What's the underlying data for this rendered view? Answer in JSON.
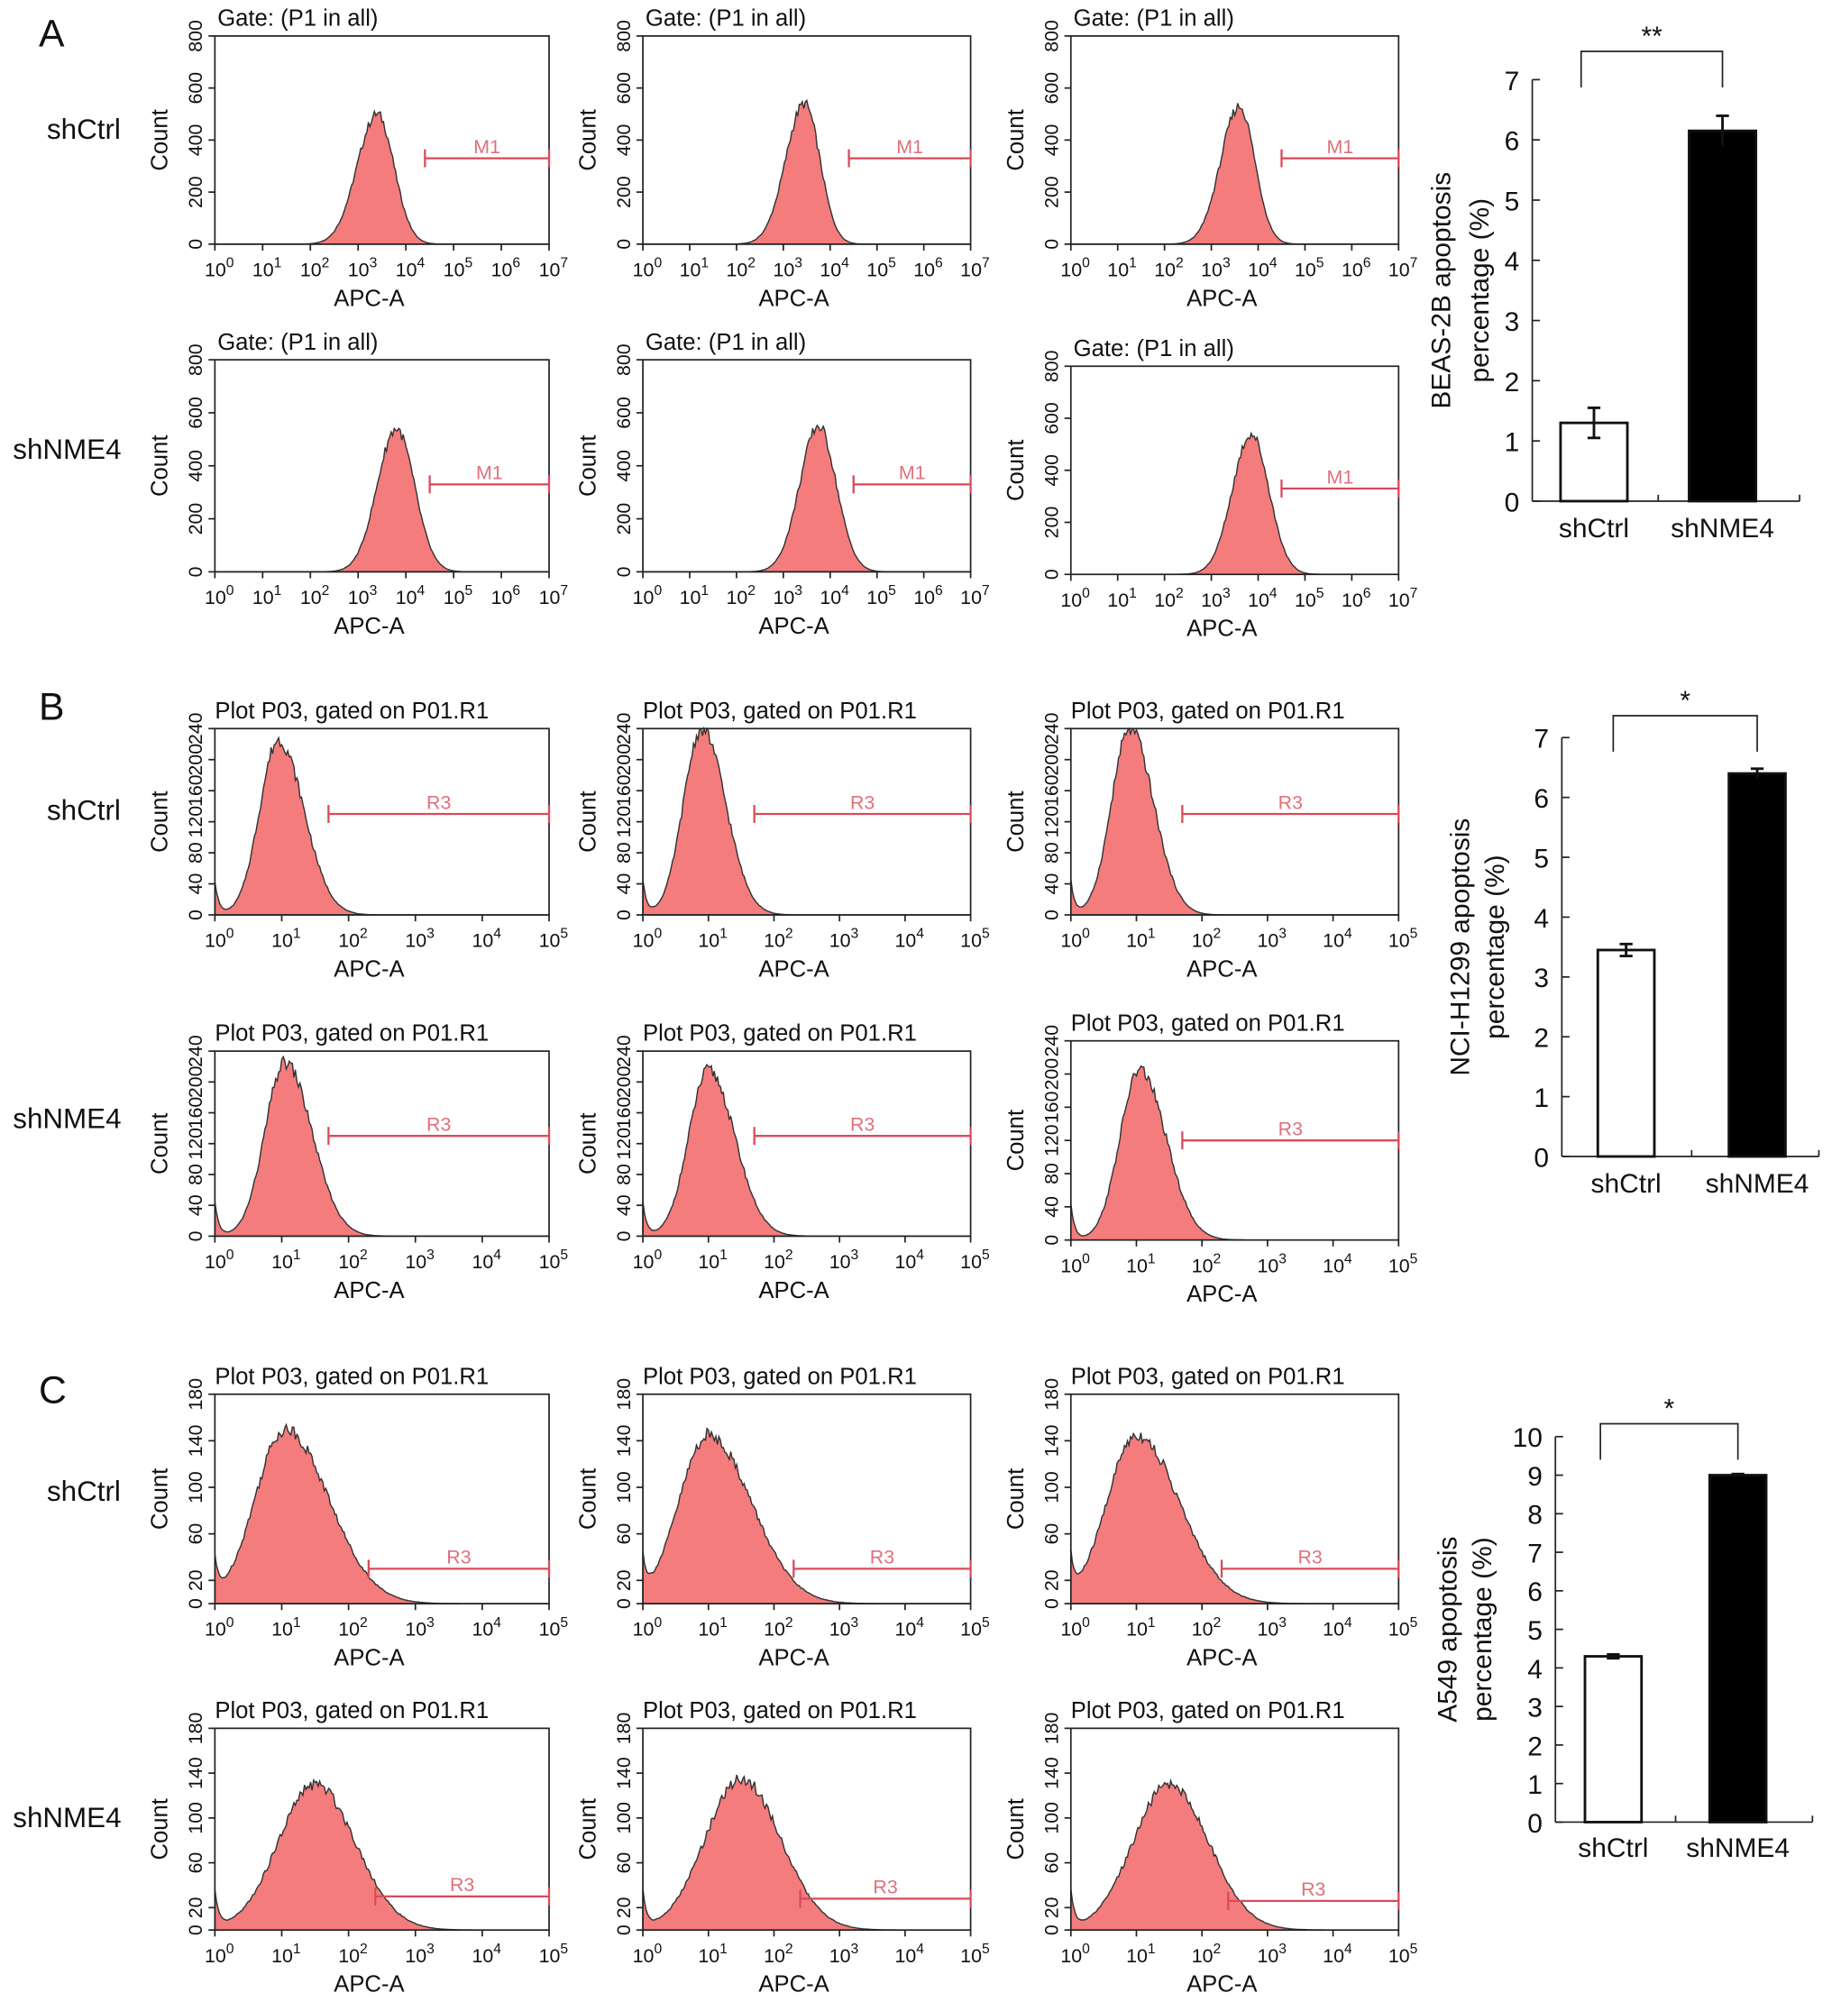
{
  "colors": {
    "histogram_fill": "#f47c7c",
    "gate": "#d94a5a",
    "bar_shCtrl": "#ffffff",
    "bar_shNME4": "#000000"
  },
  "panels": [
    {
      "letter": "A",
      "row_labels": [
        "shCtrl",
        "shNME4"
      ],
      "titles": [
        [
          "Gate: (P1 in all)",
          "Gate: (P1 in all)",
          "Gate: (P1 in all)"
        ],
        [
          "Gate: (P1 in all)",
          "Gate: (P1 in all)",
          "Gate: (P1 in all)"
        ]
      ],
      "xlabel": "APC-A",
      "ylabel": "Count",
      "x_log_range": [
        0,
        7
      ],
      "x_ticks": [
        "0",
        "1",
        "2",
        "3",
        "4",
        "5",
        "6",
        "7"
      ],
      "y_range": [
        0,
        800
      ],
      "y_ticks": [
        0,
        200,
        400,
        600,
        800
      ],
      "gate": {
        "label": "M1"
      },
      "histograms": [
        [
          {
            "peak_log10": 3.4,
            "peak_count": 500,
            "spread_left": 0.42,
            "spread_right": 0.35,
            "gate_from_log10": 4.4,
            "gate_level": 330
          },
          {
            "peak_log10": 3.45,
            "peak_count": 540,
            "spread_left": 0.4,
            "spread_right": 0.33,
            "gate_from_log10": 4.4,
            "gate_level": 330
          },
          {
            "peak_log10": 3.6,
            "peak_count": 530,
            "spread_left": 0.4,
            "spread_right": 0.33,
            "gate_from_log10": 4.5,
            "gate_level": 330
          }
        ],
        [
          {
            "peak_log10": 3.8,
            "peak_count": 540,
            "spread_left": 0.4,
            "spread_right": 0.38,
            "gate_from_log10": 4.5,
            "gate_level": 330
          },
          {
            "peak_log10": 3.75,
            "peak_count": 550,
            "spread_left": 0.4,
            "spread_right": 0.38,
            "gate_from_log10": 4.5,
            "gate_level": 330
          },
          {
            "peak_log10": 3.85,
            "peak_count": 540,
            "spread_left": 0.4,
            "spread_right": 0.38,
            "gate_from_log10": 4.5,
            "gate_level": 330
          }
        ]
      ],
      "bar_chart": {
        "type": "bar",
        "categories": [
          "shCtrl",
          "shNME4"
        ],
        "values": [
          1.3,
          6.15
        ],
        "errors": [
          0.25,
          0.25
        ],
        "ylabel_lines": [
          "BEAS-2B apoptosis",
          "percentage (%)"
        ],
        "ylim": [
          0,
          7
        ],
        "y_ticks": [
          0,
          1,
          2,
          3,
          4,
          5,
          6,
          7
        ],
        "significance": "**"
      }
    },
    {
      "letter": "B",
      "row_labels": [
        "shCtrl",
        "shNME4"
      ],
      "titles": [
        [
          "Plot P03, gated on P01.R1",
          "Plot P03, gated on P01.R1",
          "Plot P03, gated on P01.R1"
        ],
        [
          "Plot P03, gated on P01.R1",
          "Plot P03, gated on P01.R1",
          "Plot P03, gated on P01.R1"
        ]
      ],
      "xlabel": "APC-A",
      "ylabel": "Count",
      "x_log_range": [
        0,
        5
      ],
      "x_ticks": [
        "0",
        "1",
        "2",
        "3",
        "4",
        "5"
      ],
      "y_range": [
        0,
        240
      ],
      "y_ticks": [
        0,
        40,
        80,
        120,
        160,
        200,
        240
      ],
      "gate": {
        "label": "R3"
      },
      "histograms": [
        [
          {
            "peak_log10": 0.95,
            "peak_count": 225,
            "spread_left": 0.28,
            "spread_right": 0.38,
            "gate_from_log10": 1.7,
            "gate_level": 130
          },
          {
            "peak_log10": 0.9,
            "peak_count": 240,
            "spread_left": 0.28,
            "spread_right": 0.36,
            "gate_from_log10": 1.7,
            "gate_level": 130
          },
          {
            "peak_log10": 0.9,
            "peak_count": 240,
            "spread_left": 0.28,
            "spread_right": 0.36,
            "gate_from_log10": 1.7,
            "gate_level": 130
          }
        ],
        [
          {
            "peak_log10": 1.05,
            "peak_count": 225,
            "spread_left": 0.3,
            "spread_right": 0.4,
            "gate_from_log10": 1.7,
            "gate_level": 130
          },
          {
            "peak_log10": 1.0,
            "peak_count": 215,
            "spread_left": 0.3,
            "spread_right": 0.4,
            "gate_from_log10": 1.7,
            "gate_level": 130
          },
          {
            "peak_log10": 1.05,
            "peak_count": 205,
            "spread_left": 0.3,
            "spread_right": 0.4,
            "gate_from_log10": 1.7,
            "gate_level": 120
          }
        ]
      ],
      "bar_chart": {
        "type": "bar",
        "categories": [
          "shCtrl",
          "shNME4"
        ],
        "values": [
          3.45,
          6.4
        ],
        "errors": [
          0.1,
          0.08
        ],
        "ylabel_lines": [
          "NCI-H1299 apoptosis",
          "percentage (%)"
        ],
        "ylim": [
          0,
          7
        ],
        "y_ticks": [
          0,
          1,
          2,
          3,
          4,
          5,
          6,
          7
        ],
        "significance": "*"
      }
    },
    {
      "letter": "C",
      "row_labels": [
        "shCtrl",
        "shNME4"
      ],
      "titles": [
        [
          "Plot P03, gated on P01.R1",
          "Plot P03, gated on P01.R1",
          "Plot P03, gated on P01.R1"
        ],
        [
          "Plot P03, gated on P01.R1",
          "Plot P03, gated on P01.R1",
          "Plot P03, gated on P01.R1"
        ]
      ],
      "xlabel": "APC-A",
      "ylabel": "Count",
      "x_log_range": [
        0,
        5
      ],
      "x_ticks": [
        "0",
        "1",
        "2",
        "3",
        "4",
        "5"
      ],
      "y_range": [
        0,
        180
      ],
      "y_ticks": [
        0,
        20,
        60,
        100,
        140,
        180
      ],
      "gate": {
        "label": "R3"
      },
      "histograms": [
        [
          {
            "peak_log10": 1.05,
            "peak_count": 150,
            "spread_left": 0.45,
            "spread_right": 0.65,
            "gate_from_log10": 2.3,
            "gate_level": 30
          },
          {
            "peak_log10": 1.0,
            "peak_count": 145,
            "spread_left": 0.45,
            "spread_right": 0.65,
            "gate_from_log10": 2.3,
            "gate_level": 30
          },
          {
            "peak_log10": 1.0,
            "peak_count": 145,
            "spread_left": 0.45,
            "spread_right": 0.65,
            "gate_from_log10": 2.3,
            "gate_level": 30
          }
        ],
        [
          {
            "peak_log10": 1.5,
            "peak_count": 130,
            "spread_left": 0.55,
            "spread_right": 0.6,
            "gate_from_log10": 2.4,
            "gate_level": 30
          },
          {
            "peak_log10": 1.5,
            "peak_count": 135,
            "spread_left": 0.55,
            "spread_right": 0.6,
            "gate_from_log10": 2.4,
            "gate_level": 28
          },
          {
            "peak_log10": 1.5,
            "peak_count": 130,
            "spread_left": 0.55,
            "spread_right": 0.6,
            "gate_from_log10": 2.4,
            "gate_level": 26
          }
        ]
      ],
      "bar_chart": {
        "type": "bar",
        "categories": [
          "shCtrl",
          "shNME4"
        ],
        "values": [
          4.3,
          9.0
        ],
        "errors": [
          0.05,
          0.03
        ],
        "ylabel_lines": [
          "A549 apoptosis",
          "percentage (%)"
        ],
        "ylim": [
          0,
          10
        ],
        "y_ticks": [
          0,
          1,
          2,
          3,
          4,
          5,
          6,
          7,
          8,
          9,
          10
        ],
        "significance": "*"
      }
    }
  ],
  "chart_data": {
    "type": "bar",
    "charts": [
      {
        "ylabel": "BEAS-2B apoptosis percentage (%)",
        "categories": [
          "shCtrl",
          "shNME4"
        ],
        "values": [
          1.3,
          6.15
        ],
        "errors": [
          0.25,
          0.25
        ],
        "ylim": [
          0,
          7
        ],
        "significance": "**"
      },
      {
        "ylabel": "NCI-H1299 apoptosis percentage (%)",
        "categories": [
          "shCtrl",
          "shNME4"
        ],
        "values": [
          3.45,
          6.4
        ],
        "errors": [
          0.1,
          0.08
        ],
        "ylim": [
          0,
          7
        ],
        "significance": "*"
      },
      {
        "ylabel": "A549 apoptosis percentage (%)",
        "categories": [
          "shCtrl",
          "shNME4"
        ],
        "values": [
          4.3,
          9.0
        ],
        "errors": [
          0.05,
          0.03
        ],
        "ylim": [
          0,
          10
        ],
        "significance": "*"
      }
    ]
  }
}
